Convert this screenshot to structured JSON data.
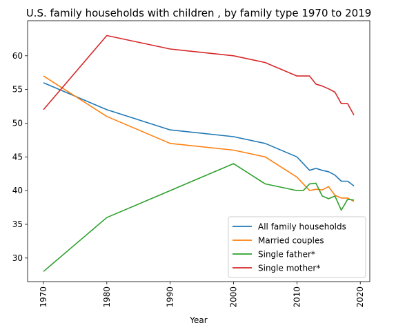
{
  "chart_data": {
    "type": "line",
    "title": "U.S. family households with children , by family type 1970 to 2019",
    "xlabel": "Year",
    "ylabel": "",
    "xlim": [
      1967.5,
      2021.5
    ],
    "ylim": [
      26.5,
      65.2
    ],
    "xticks": [
      1970,
      1980,
      1990,
      2000,
      2010,
      2020
    ],
    "yticks": [
      30,
      35,
      40,
      45,
      50,
      55,
      60
    ],
    "x_tick_rotation": 90,
    "grid": false,
    "legend_position": "lower-right",
    "series": [
      {
        "name": "All family households",
        "color": "#1f77b4",
        "x": [
          1970,
          1980,
          1990,
          2000,
          2005,
          2010,
          2011,
          2012,
          2013,
          2014,
          2015,
          2016,
          2017,
          2018,
          2019
        ],
        "values": [
          56,
          52,
          49,
          48,
          47,
          45,
          44,
          43,
          43.3,
          43,
          42.8,
          42.3,
          41.4,
          41.4,
          40.7
        ]
      },
      {
        "name": "Married couples",
        "color": "#ff7f0e",
        "x": [
          1970,
          1980,
          1990,
          2000,
          2005,
          2010,
          2011,
          2012,
          2013,
          2014,
          2015,
          2016,
          2017,
          2018,
          2019
        ],
        "values": [
          57,
          51,
          47,
          46,
          45,
          42,
          41,
          40,
          40.2,
          40.1,
          40.6,
          39.3,
          38.9,
          38.9,
          38.4
        ]
      },
      {
        "name": "Single father*",
        "color": "#2ca02c",
        "x": [
          1970,
          1980,
          1990,
          2000,
          2005,
          2010,
          2011,
          2012,
          2013,
          2014,
          2015,
          2016,
          2017,
          2018,
          2019
        ],
        "values": [
          28,
          36,
          40,
          44,
          41,
          40,
          40,
          41,
          41.1,
          39.2,
          38.8,
          39.2,
          37.1,
          38.7,
          38.6
        ]
      },
      {
        "name": "Single mother*",
        "color": "#d62728",
        "x": [
          1970,
          1980,
          1990,
          2000,
          2005,
          2010,
          2011,
          2012,
          2013,
          2014,
          2015,
          2016,
          2017,
          2018,
          2019
        ],
        "values": [
          52,
          63,
          61,
          60,
          59,
          57,
          57,
          57,
          55.8,
          55.5,
          55.1,
          54.6,
          52.9,
          52.9,
          51.2
        ]
      }
    ]
  }
}
